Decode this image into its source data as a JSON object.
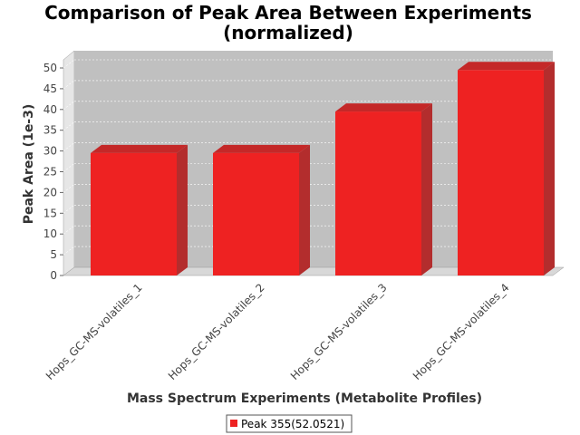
{
  "chart_data": {
    "type": "bar",
    "title_line1": "Comparison of Peak Area Between Experiments",
    "title_line2": "(normalized)",
    "xlabel": "Mass Spectrum Experiments (Metabolite Profiles)",
    "ylabel": "Peak Area (1e-3)",
    "categories": [
      "Hops_GC-MS-volatiles_1",
      "Hops_GC-MS-volatiles_2",
      "Hops_GC-MS-volatiles_3",
      "Hops_GC-MS-volatiles_4"
    ],
    "series": [
      {
        "name": "Peak 355(52.0521)",
        "values": [
          29.5,
          29.5,
          39.5,
          49.5
        ],
        "color": "#ee2222"
      }
    ],
    "ylim": [
      0,
      50
    ],
    "yticks": [
      0,
      5,
      10,
      15,
      20,
      25,
      30,
      35,
      40,
      45,
      50
    ],
    "grid": true,
    "legend_position": "bottom-center",
    "plot_background": "#c0c0c0"
  }
}
